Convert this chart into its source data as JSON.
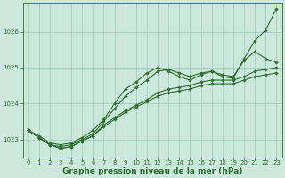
{
  "bg_color": "#cce8dd",
  "grid_color": "#99ccbb",
  "line_color": "#2d6e2d",
  "marker": "D",
  "marker_size": 1.8,
  "line_width": 0.8,
  "xlabel": "Graphe pression niveau de la mer (hPa)",
  "xlabel_fontsize": 6.5,
  "xlabel_color": "#2d6e2d",
  "xlabel_bold": true,
  "tick_color": "#2d6e2d",
  "tick_fontsize": 5.0,
  "xlim": [
    -0.5,
    23.5
  ],
  "ylim": [
    1022.5,
    1026.8
  ],
  "yticks": [
    1023,
    1024,
    1025,
    1026
  ],
  "xticks": [
    0,
    1,
    2,
    3,
    4,
    5,
    6,
    7,
    8,
    9,
    10,
    11,
    12,
    13,
    14,
    15,
    16,
    17,
    18,
    19,
    20,
    21,
    22,
    23
  ],
  "series": [
    [
      1023.25,
      1023.05,
      1022.85,
      1022.75,
      1022.8,
      1022.95,
      1023.1,
      1023.35,
      1023.55,
      1023.75,
      1023.9,
      1024.05,
      1024.2,
      1024.3,
      1024.35,
      1024.4,
      1024.5,
      1024.55,
      1024.55,
      1024.55,
      1024.65,
      1024.75,
      1024.8,
      1024.85
    ],
    [
      1023.25,
      1023.05,
      1022.85,
      1022.75,
      1022.8,
      1022.95,
      1023.1,
      1023.4,
      1023.6,
      1023.8,
      1023.95,
      1024.1,
      1024.3,
      1024.4,
      1024.45,
      1024.5,
      1024.6,
      1024.65,
      1024.65,
      1024.65,
      1024.75,
      1024.9,
      1024.95,
      1025.0
    ],
    [
      1023.25,
      1023.05,
      1022.85,
      1022.8,
      1022.85,
      1023.0,
      1023.15,
      1023.5,
      1023.85,
      1024.2,
      1024.45,
      1024.65,
      1024.9,
      1024.95,
      1024.85,
      1024.75,
      1024.85,
      1024.9,
      1024.8,
      1024.75,
      1025.2,
      1025.45,
      1025.25,
      1025.15
    ],
    [
      1023.25,
      1023.1,
      1022.9,
      1022.85,
      1022.9,
      1023.05,
      1023.25,
      1023.55,
      1024.0,
      1024.4,
      1024.6,
      1024.85,
      1025.0,
      1024.9,
      1024.75,
      1024.65,
      1024.8,
      1024.9,
      1024.75,
      1024.7,
      1025.25,
      1025.75,
      1026.05,
      1026.65
    ]
  ]
}
